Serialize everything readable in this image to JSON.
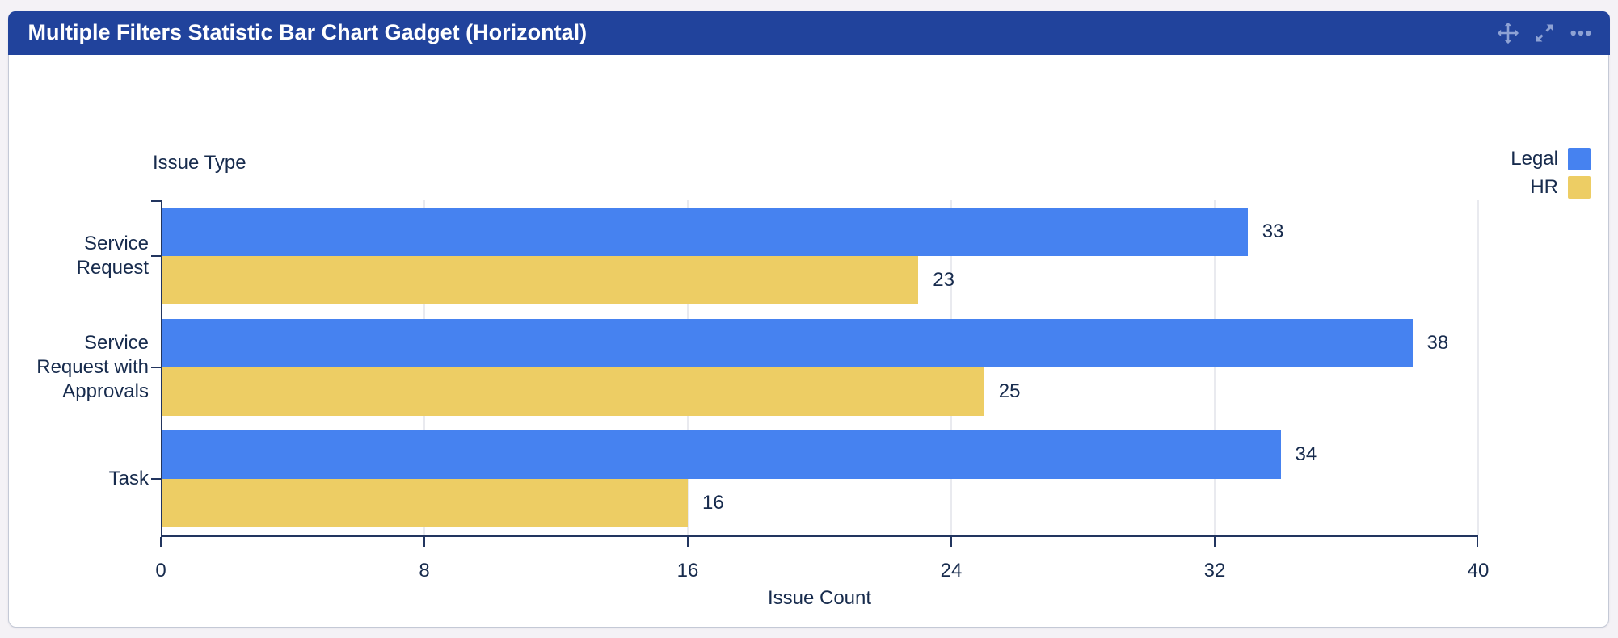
{
  "header": {
    "title": "Multiple Filters Statistic Bar Chart Gadget (Horizontal)",
    "toolbar_icons": [
      "move-icon",
      "expand-icon",
      "more-icon"
    ]
  },
  "colors": {
    "page_bg": "#F4F2F6",
    "card_bg": "#FFFFFF",
    "card_border": "#C4C9D6",
    "header_bg": "#21439C",
    "header_text": "#FFFFFF",
    "header_icon": "#8EA2D4",
    "text": "#172B4D",
    "axis": "#22355F",
    "gridline": "#E9EAEF",
    "legal_blue": "#4682F0",
    "hr_yellow": "#EDCD64"
  },
  "chart_data": {
    "type": "bar",
    "orientation": "horizontal",
    "y_axis_title": "Issue Type",
    "x_axis_title": "Issue Count",
    "categories": [
      "Service Request",
      "Service Request with Approvals",
      "Task"
    ],
    "category_label_lines": [
      [
        "Service",
        "Request"
      ],
      [
        "Service",
        "Request with",
        "Approvals"
      ],
      [
        "Task"
      ]
    ],
    "series": [
      {
        "name": "Legal",
        "color": "#4682F0",
        "values": [
          33,
          38,
          34
        ]
      },
      {
        "name": "HR",
        "color": "#EDCD64",
        "values": [
          23,
          25,
          16
        ]
      }
    ],
    "xlim": [
      0,
      40
    ],
    "xticks": [
      0,
      8,
      16,
      24,
      32,
      40
    ],
    "grid": true,
    "legend_position": "top-right",
    "value_labels": true
  }
}
